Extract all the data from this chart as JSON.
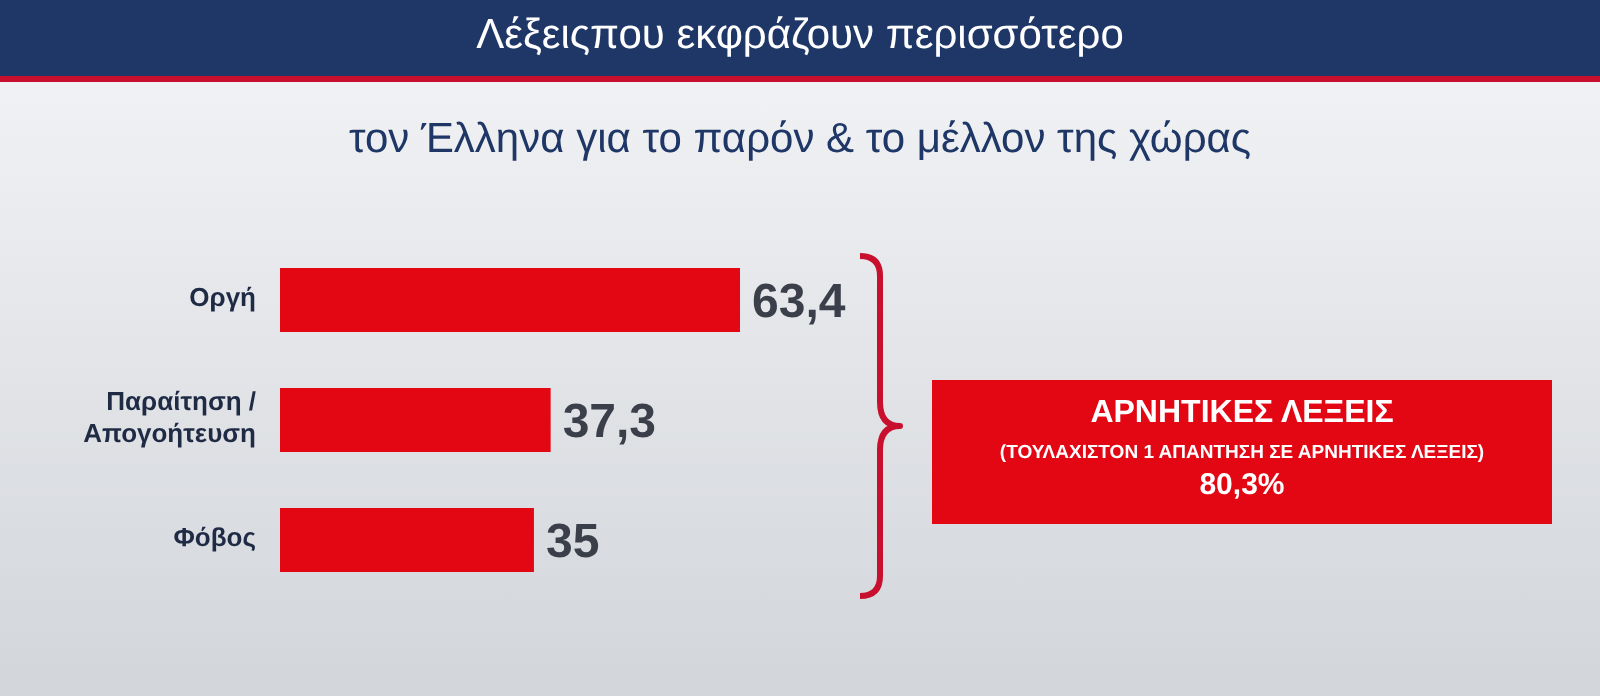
{
  "chart_data": {
    "type": "bar",
    "orientation": "horizontal",
    "title": "Λέξειςπου εκφράζουν περισσότερο",
    "subtitle": "τον Έλληνα για το παρόν & το μέλλον της χώρας",
    "categories": [
      "Οργή",
      "Παραίτηση / Απογοήτευση",
      "Φόβος"
    ],
    "values": [
      63.4,
      37.3,
      35
    ],
    "value_labels": [
      "63,4",
      "37,3",
      "35"
    ],
    "color": "#e30613",
    "annotations": [
      "ΑΡΝΗΤΙΚΕΣ ΛΕΞΕΙΣ",
      "(ΤΟΥΛΑΧΙΣΤΟΝ 1 ΑΠΑΝΤΗΣΗ ΣΕ ΑΡΝΗΤΙΚΕΣ ΛΕΞΕΙΣ)",
      "80,3%"
    ]
  }
}
